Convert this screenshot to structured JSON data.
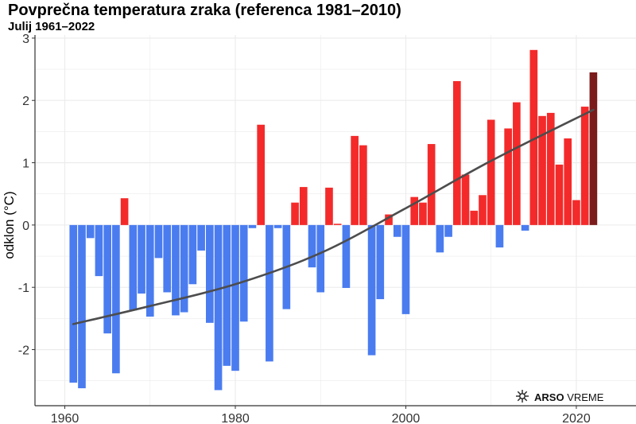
{
  "title": "Povprečna temperatura zraka (referenca 1981–2010)",
  "subtitle": "Julij 1961–2022",
  "chart_data": {
    "type": "bar",
    "title": "Povprečna temperatura zraka (referenca 1981–2010)",
    "subtitle": "Julij 1961–2022",
    "xlabel": "",
    "ylabel": "odklon (°C)",
    "xlim": [
      1956.5,
      2027
    ],
    "ylim": [
      -2.9,
      3.05
    ],
    "xticks": [
      1960,
      1980,
      2000,
      2020
    ],
    "yticks": [
      -2,
      -1,
      0,
      1,
      2,
      3
    ],
    "grid": true,
    "colors": {
      "negative": "#4a7cf0",
      "positive": "#f42a2a",
      "latest": "#7b1b1b",
      "trend": "#4d4d4d",
      "grid": "#ebebeb",
      "axis": "#333333"
    },
    "years": [
      1961,
      1962,
      1963,
      1964,
      1965,
      1966,
      1967,
      1968,
      1969,
      1970,
      1971,
      1972,
      1973,
      1974,
      1975,
      1976,
      1977,
      1978,
      1979,
      1980,
      1981,
      1982,
      1983,
      1984,
      1985,
      1986,
      1987,
      1988,
      1989,
      1990,
      1991,
      1992,
      1993,
      1994,
      1995,
      1996,
      1997,
      1998,
      1999,
      2000,
      2001,
      2002,
      2003,
      2004,
      2005,
      2006,
      2007,
      2008,
      2009,
      2010,
      2011,
      2012,
      2013,
      2014,
      2015,
      2016,
      2017,
      2018,
      2019,
      2020,
      2021,
      2022
    ],
    "values": [
      -2.53,
      -2.62,
      -0.21,
      -0.82,
      -1.74,
      -2.38,
      0.43,
      -1.37,
      -1.1,
      -1.47,
      -0.53,
      -1.08,
      -1.45,
      -1.4,
      -0.95,
      -0.41,
      -1.57,
      -2.65,
      -2.26,
      -2.34,
      -1.55,
      -0.05,
      1.61,
      -2.19,
      -0.05,
      -1.35,
      0.36,
      0.61,
      -0.68,
      -1.08,
      0.6,
      0.02,
      -1.01,
      1.43,
      1.28,
      -2.09,
      -1.19,
      0.17,
      -0.19,
      -1.43,
      0.45,
      0.36,
      1.3,
      -0.44,
      -0.19,
      2.31,
      0.81,
      0.23,
      0.48,
      1.69,
      -0.36,
      1.55,
      1.97,
      -0.09,
      2.81,
      1.75,
      1.8,
      0.97,
      1.39,
      0.4,
      1.9,
      2.45
    ],
    "trend": [
      [
        1961,
        -1.59
      ],
      [
        1970,
        -1.3
      ],
      [
        1980,
        -0.95
      ],
      [
        1990,
        -0.45
      ],
      [
        2000,
        0.27
      ],
      [
        2010,
        1.03
      ],
      [
        2022,
        1.85
      ]
    ]
  },
  "logo": {
    "brand": "ARSO",
    "sub": "VREME",
    "icon": "arso-sun-logo-icon"
  }
}
